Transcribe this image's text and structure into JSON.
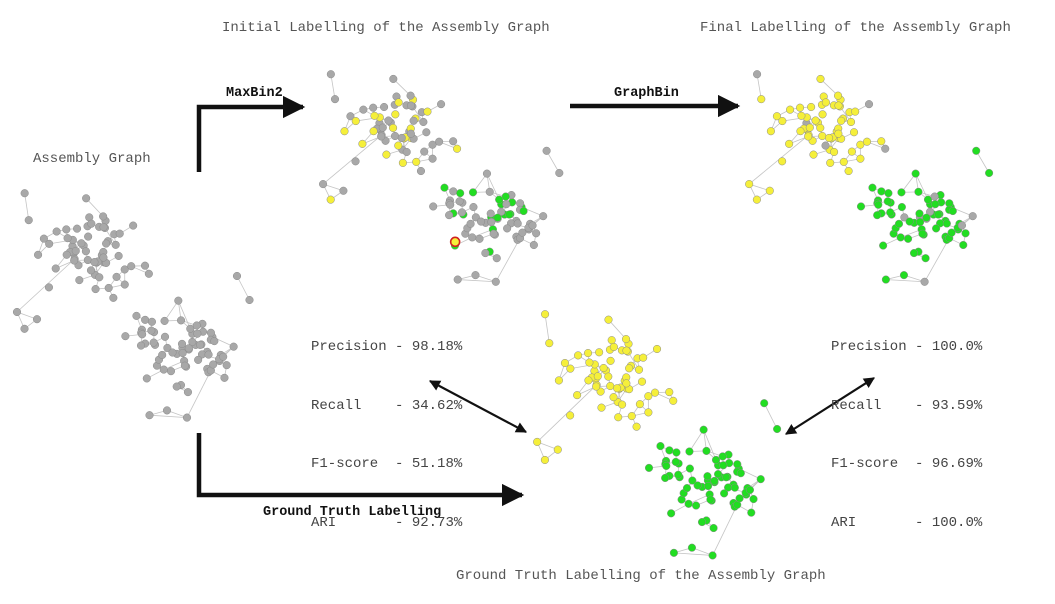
{
  "titles": {
    "assembly_graph": "Assembly Graph",
    "initial": "Initial Labelling of the Assembly Graph",
    "final": "Final Labelling of the Assembly Graph",
    "ground_truth": "Ground Truth Labelling of the Assembly Graph"
  },
  "arrows": {
    "maxbin": "MaxBin2",
    "graphbin": "GraphBin",
    "ground_truth": "Ground Truth Labelling"
  },
  "metrics_initial": [
    {
      "name": "Precision",
      "sep": " - ",
      "value": "98.18%"
    },
    {
      "name": "Recall   ",
      "sep": " - ",
      "value": "34.62%"
    },
    {
      "name": "F1-score ",
      "sep": " - ",
      "value": "51.18%"
    },
    {
      "name": "ARI      ",
      "sep": " - ",
      "value": "92.73%"
    }
  ],
  "metrics_final": [
    {
      "name": "Precision",
      "sep": " - ",
      "value": "100.0%"
    },
    {
      "name": "Recall   ",
      "sep": " - ",
      "value": "93.59%"
    },
    {
      "name": "F1-score ",
      "sep": " - ",
      "value": "96.69%"
    },
    {
      "name": "ARI      ",
      "sep": " - ",
      "value": "100.0%"
    }
  ],
  "colors": {
    "unlabelled": "#a8a8a8",
    "bin_yellow": "#f5ef3a",
    "bin_green": "#22dd22",
    "misbinned_outline": "#d02020",
    "edge": "#c4c4c4",
    "arrow": "#111111"
  }
}
